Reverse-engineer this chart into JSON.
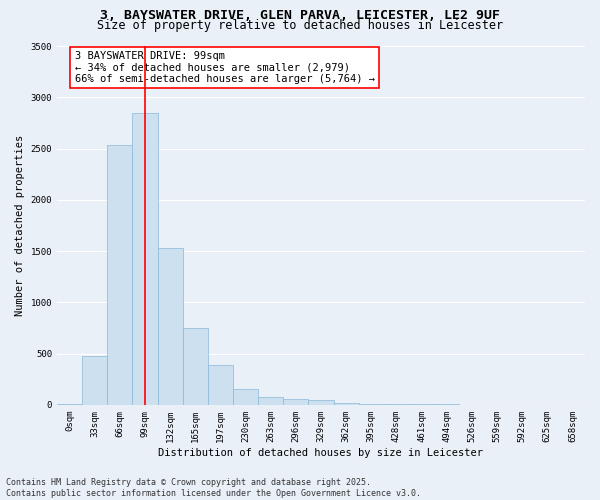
{
  "title_line1": "3, BAYSWATER DRIVE, GLEN PARVA, LEICESTER, LE2 9UF",
  "title_line2": "Size of property relative to detached houses in Leicester",
  "xlabel": "Distribution of detached houses by size in Leicester",
  "ylabel": "Number of detached properties",
  "bar_color": "#cce0f0",
  "bar_edge_color": "#8ab8d8",
  "vline_color": "red",
  "vline_x": 3,
  "annotation_title": "3 BAYSWATER DRIVE: 99sqm",
  "annotation_line2": "← 34% of detached houses are smaller (2,979)",
  "annotation_line3": "66% of semi-detached houses are larger (5,764) →",
  "categories": [
    "0sqm",
    "33sqm",
    "66sqm",
    "99sqm",
    "132sqm",
    "165sqm",
    "197sqm",
    "230sqm",
    "263sqm",
    "296sqm",
    "329sqm",
    "362sqm",
    "395sqm",
    "428sqm",
    "461sqm",
    "494sqm",
    "526sqm",
    "559sqm",
    "592sqm",
    "625sqm",
    "658sqm"
  ],
  "values": [
    10,
    480,
    2530,
    2850,
    1530,
    750,
    390,
    155,
    80,
    55,
    50,
    20,
    10,
    5,
    5,
    5,
    0,
    0,
    0,
    0,
    0
  ],
  "ylim": [
    0,
    3500
  ],
  "yticks": [
    0,
    500,
    1000,
    1500,
    2000,
    2500,
    3000,
    3500
  ],
  "background_color": "#eaf0f8",
  "grid_color": "#ffffff",
  "footer_line1": "Contains HM Land Registry data © Crown copyright and database right 2025.",
  "footer_line2": "Contains public sector information licensed under the Open Government Licence v3.0.",
  "title_fontsize": 9.5,
  "subtitle_fontsize": 8.5,
  "axis_label_fontsize": 7.5,
  "tick_fontsize": 6.5,
  "annotation_fontsize": 7.5,
  "footer_fontsize": 6.0,
  "ylabel_fontsize": 7.5
}
